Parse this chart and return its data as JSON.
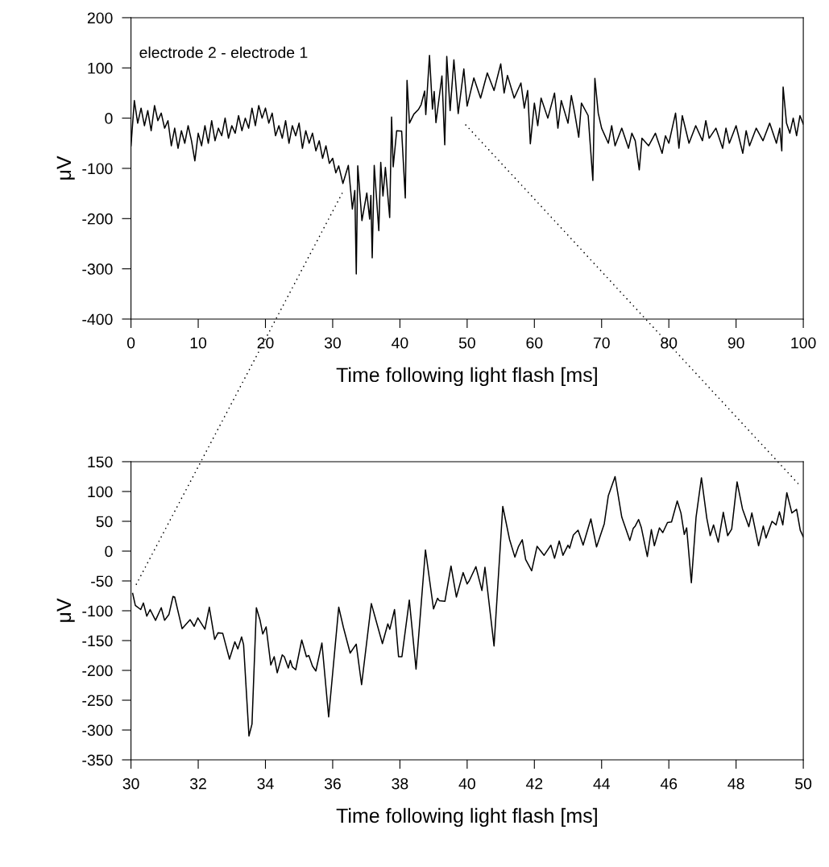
{
  "chart_data": [
    {
      "type": "line",
      "xlabel": "Time following light flash [ms]",
      "ylabel": "μV",
      "annotations": [
        "electrode 2 - electrode 1"
      ],
      "xlim": [
        0,
        100
      ],
      "ylim": [
        -400,
        200
      ],
      "xticks": [
        0,
        10,
        20,
        30,
        40,
        50,
        60,
        70,
        80,
        90,
        100
      ],
      "yticks": [
        -400,
        -300,
        -200,
        -100,
        0,
        100,
        200
      ],
      "grid": false,
      "legend": false,
      "marker": "none",
      "line_style": "solid",
      "series": [
        {
          "color": "#000000",
          "x": [
            0,
            0.5,
            1,
            1.5,
            2,
            2.5,
            3,
            3.5,
            4,
            4.5,
            5,
            5.5,
            6,
            6.5,
            7,
            7.5,
            8,
            8.5,
            9,
            9.5,
            10,
            10.5,
            11,
            11.5,
            12,
            12.5,
            13,
            13.5,
            14,
            14.5,
            15,
            15.5,
            16,
            16.5,
            17,
            17.5,
            18,
            18.5,
            19,
            19.5,
            20,
            20.5,
            21,
            21.5,
            22,
            22.5,
            23,
            23.5,
            24,
            24.5,
            25,
            25.5,
            26,
            26.5,
            27,
            27.5,
            28,
            28.5,
            29,
            29.5,
            30,
            30.47,
            30.9,
            31.52,
            32.33,
            32.93,
            33.29,
            33.51,
            33.73,
            34.35,
            35.08,
            35.5,
            35.68,
            35.88,
            36.18,
            36.86,
            37.15,
            37.48,
            37.84,
            38.48,
            38.76,
            39.0,
            39.52,
            40.26,
            40.8,
            41.06,
            41.42,
            42.08,
            42.74,
            43.16,
            43.68,
            43.85,
            44.4,
            44.84,
            45.1,
            45.36,
            46.25,
            46.67,
            46.97,
            47.47,
            48.03,
            48.67,
            49.51,
            50.0,
            51,
            52,
            53,
            54,
            55,
            55.5,
            56,
            57,
            58,
            58.5,
            59,
            59.4,
            60,
            60.5,
            61,
            62,
            63,
            63.5,
            64,
            65,
            65.5,
            66,
            66.6,
            67,
            68,
            68.7,
            69,
            69.5,
            70,
            71,
            71.5,
            72,
            73,
            74,
            74.5,
            75,
            75.6,
            76,
            77,
            78,
            79,
            79.5,
            80,
            81,
            81.5,
            82,
            83,
            84,
            85,
            85.5,
            86,
            87,
            88,
            88.5,
            89,
            90,
            91,
            91.5,
            92,
            93,
            94,
            95,
            96,
            96.5,
            96.8,
            97,
            97.5,
            98,
            98.5,
            99,
            99.5,
            100
          ],
          "values": [
            -55,
            35,
            -10,
            20,
            -15,
            15,
            -25,
            25,
            -5,
            10,
            -20,
            -5,
            -55,
            -20,
            -60,
            -25,
            -50,
            -15,
            -45,
            -85,
            -30,
            -55,
            -15,
            -50,
            -5,
            -45,
            -20,
            -35,
            0,
            -40,
            -15,
            -30,
            5,
            -25,
            0,
            -20,
            20,
            -15,
            25,
            0,
            20,
            -10,
            10,
            -35,
            -15,
            -40,
            -5,
            -50,
            -15,
            -35,
            -10,
            -60,
            -25,
            -50,
            -30,
            -65,
            -45,
            -80,
            -55,
            -90,
            -80,
            -109,
            -95,
            -130,
            -94,
            -181,
            -144,
            -310,
            -95,
            -204,
            -149,
            -201,
            -154,
            -278,
            -94,
            -224,
            -88,
            -155,
            -98,
            -198,
            2,
            -97,
            -25,
            -26,
            -159,
            75,
            -10,
            8,
            17,
            27,
            54,
            7,
            125,
            18,
            53,
            -9,
            84,
            -53,
            123,
            15,
            116,
            9,
            98,
            24,
            80,
            40,
            90,
            55,
            108,
            50,
            85,
            40,
            70,
            20,
            55,
            -51,
            30,
            -15,
            40,
            0,
            50,
            -20,
            35,
            -10,
            45,
            10,
            -38,
            30,
            5,
            -124,
            79,
            10,
            -20,
            -50,
            -15,
            -55,
            -20,
            -60,
            -30,
            -45,
            -103,
            -40,
            -55,
            -30,
            -70,
            -35,
            -50,
            10,
            -60,
            5,
            -50,
            -15,
            -45,
            -5,
            -40,
            -20,
            -60,
            -20,
            -50,
            -15,
            -70,
            -25,
            -55,
            -20,
            -45,
            -10,
            -50,
            -20,
            -65,
            62,
            -10,
            -30,
            0,
            -35,
            5,
            -12
          ]
        }
      ]
    },
    {
      "type": "line",
      "xlabel": "Time following light flash [ms]",
      "ylabel": "μV",
      "xlim": [
        30,
        50
      ],
      "ylim": [
        -350,
        150
      ],
      "xticks": [
        30,
        32,
        34,
        36,
        38,
        40,
        42,
        44,
        46,
        48,
        50
      ],
      "yticks": [
        -350,
        -300,
        -250,
        -200,
        -150,
        -100,
        -50,
        0,
        50,
        100,
        150
      ],
      "grid": false,
      "legend": false,
      "marker": "none",
      "line_style": "solid",
      "series": [
        {
          "color": "#000000",
          "x": [
            30.05,
            30.13,
            30.29,
            30.37,
            30.47,
            30.57,
            30.73,
            30.9,
            31.0,
            31.13,
            31.25,
            31.3,
            31.52,
            31.76,
            31.88,
            31.99,
            32.2,
            32.33,
            32.49,
            32.59,
            32.73,
            32.93,
            33.09,
            33.18,
            33.29,
            33.35,
            33.51,
            33.6,
            33.73,
            33.84,
            33.92,
            34.02,
            34.16,
            34.26,
            34.35,
            34.5,
            34.56,
            34.68,
            34.74,
            34.8,
            34.9,
            35.08,
            35.22,
            35.29,
            35.4,
            35.5,
            35.68,
            35.88,
            36.18,
            36.32,
            36.52,
            36.7,
            36.86,
            37.15,
            37.48,
            37.64,
            37.7,
            37.84,
            37.96,
            38.06,
            38.28,
            38.48,
            38.76,
            39.0,
            39.12,
            39.17,
            39.34,
            39.52,
            39.68,
            39.88,
            40.0,
            40.06,
            40.26,
            40.44,
            40.53,
            40.8,
            41.06,
            41.26,
            41.42,
            41.53,
            41.64,
            41.74,
            41.92,
            42.08,
            42.29,
            42.49,
            42.6,
            42.74,
            42.85,
            43.0,
            43.05,
            43.16,
            43.3,
            43.45,
            43.68,
            43.85,
            44.08,
            44.2,
            44.4,
            44.6,
            44.84,
            44.94,
            45.0,
            45.1,
            45.18,
            45.36,
            45.48,
            45.57,
            45.72,
            45.82,
            45.96,
            46.08,
            46.25,
            46.36,
            46.46,
            46.53,
            46.67,
            46.81,
            46.97,
            47.13,
            47.23,
            47.33,
            47.47,
            47.62,
            47.75,
            47.87,
            48.03,
            48.19,
            48.38,
            48.47,
            48.67,
            48.81,
            48.89,
            49.07,
            49.19,
            49.29,
            49.39,
            49.51,
            49.66,
            49.8,
            49.91,
            50.0
          ],
          "values": [
            -71,
            -91,
            -98,
            -87,
            -109,
            -98,
            -116,
            -95,
            -116,
            -106,
            -76,
            -77,
            -130,
            -115,
            -126,
            -112,
            -131,
            -94,
            -148,
            -137,
            -138,
            -181,
            -152,
            -164,
            -144,
            -157,
            -310,
            -290,
            -95,
            -116,
            -139,
            -127,
            -191,
            -177,
            -204,
            -174,
            -177,
            -196,
            -183,
            -194,
            -199,
            -149,
            -177,
            -175,
            -193,
            -201,
            -154,
            -278,
            -94,
            -128,
            -171,
            -156,
            -224,
            -88,
            -155,
            -122,
            -131,
            -98,
            -177,
            -177,
            -82,
            -198,
            2,
            -97,
            -79,
            -83,
            -84,
            -25,
            -77,
            -36,
            -55,
            -50,
            -26,
            -66,
            -27,
            -159,
            75,
            20,
            -10,
            8,
            19,
            -14,
            -33,
            8,
            -7,
            10,
            -12,
            17,
            -7,
            10,
            5,
            27,
            35,
            10,
            54,
            7,
            46,
            93,
            125,
            57,
            18,
            38,
            42,
            53,
            40,
            -9,
            36,
            9,
            39,
            31,
            48,
            49,
            84,
            64,
            28,
            39,
            -53,
            57,
            123,
            55,
            26,
            44,
            15,
            65,
            26,
            37,
            116,
            71,
            41,
            64,
            9,
            42,
            22,
            50,
            44,
            66,
            44,
            98,
            64,
            70,
            35,
            24
          ]
        }
      ]
    }
  ]
}
